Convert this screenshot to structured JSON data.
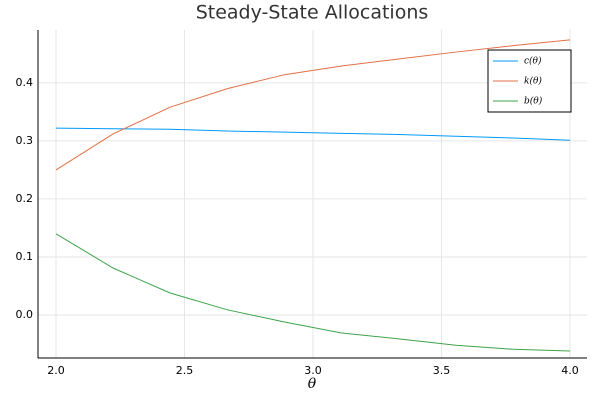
{
  "chart_data": {
    "type": "line",
    "title": "Steady-State Allocations",
    "x_label": "θ",
    "x": [
      2,
      2.222,
      2.444,
      2.667,
      2.889,
      3.111,
      3.333,
      3.556,
      3.778,
      4
    ],
    "series": [
      {
        "name": "c(θ)",
        "color": "#009af9",
        "values": [
          0.322,
          0.321,
          0.32,
          0.317,
          0.315,
          0.313,
          0.311,
          0.308,
          0.305,
          0.301
        ]
      },
      {
        "name": "k(θ)",
        "color": "#e26f46",
        "values": [
          0.25,
          0.312,
          0.358,
          0.39,
          0.414,
          0.429,
          0.441,
          0.453,
          0.464,
          0.474
        ]
      },
      {
        "name": "b(θ)",
        "color": "#3da44d",
        "values": [
          0.14,
          0.081,
          0.038,
          0.009,
          -0.012,
          -0.031,
          -0.041,
          -0.052,
          -0.059,
          -0.062
        ]
      }
    ],
    "xlim": [
      1.93,
      4.066
    ],
    "xticks": [
      {
        "value": 2,
        "label": "2.0"
      },
      2.5,
      {
        "value": 3,
        "label": "3.0"
      },
      3.5,
      {
        "value": 4,
        "label": "4.0"
      }
    ],
    "ylim": [
      -0.074,
      0.491
    ],
    "yticks": [
      {
        "value": 0,
        "label": "0.0"
      },
      0.1,
      0.2,
      0.3,
      0.4
    ],
    "grid": true,
    "legend": "top-right"
  }
}
